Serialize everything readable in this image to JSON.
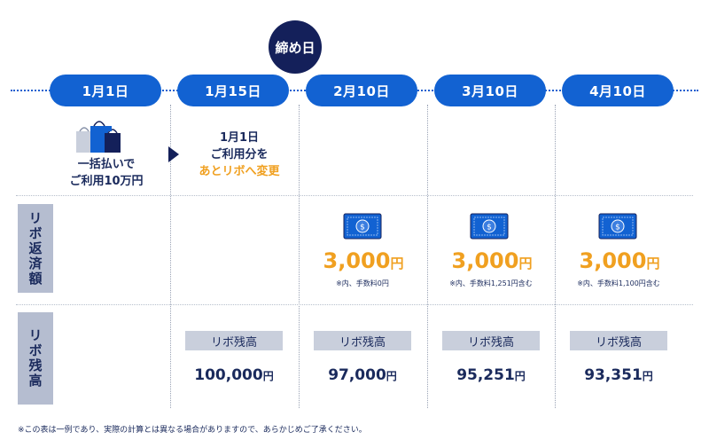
{
  "closing_day": "締め日",
  "dates": [
    "1月1日",
    "1月15日",
    "2月10日",
    "3月10日",
    "4月10日"
  ],
  "purchase": {
    "line1": "一括払いで",
    "line2": "ご利用10万円"
  },
  "change": {
    "line1": "1月1日",
    "line2": "ご利用分を",
    "line3": "あとリボへ変更"
  },
  "rows": {
    "repayment_label": "リボ返済額",
    "balance_label": "リボ残高"
  },
  "repayments": [
    {
      "amount": "3,000",
      "unit": "円",
      "note": "※内、手数料0円"
    },
    {
      "amount": "3,000",
      "unit": "円",
      "note": "※内、手数料1,251円含む"
    },
    {
      "amount": "3,000",
      "unit": "円",
      "note": "※内、手数料1,100円含む"
    }
  ],
  "balance_tag": "リボ残高",
  "balances": [
    {
      "value": "100,000",
      "unit": "円"
    },
    {
      "value": "97,000",
      "unit": "円"
    },
    {
      "value": "95,251",
      "unit": "円"
    },
    {
      "value": "93,351",
      "unit": "円"
    }
  ],
  "footnote": "※この表は一例であり、実際の計算とは異なる場合がありますので、あらかじめご了承ください。",
  "colors": {
    "pill": "#1262d2",
    "navy": "#14205a",
    "accent": "#f0a020",
    "label_bg": "#b5bdd0"
  }
}
